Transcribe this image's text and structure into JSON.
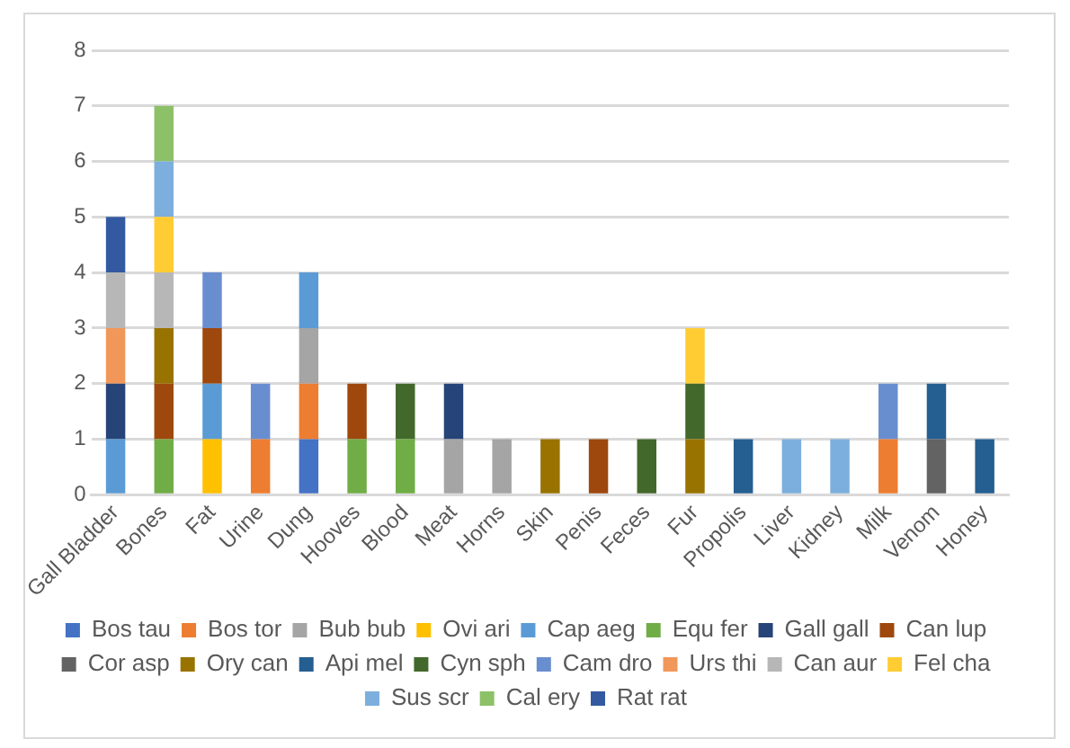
{
  "chart_data": {
    "type": "bar",
    "stacked": true,
    "legend": "bottom",
    "grid": "y",
    "ylim": [
      0,
      8
    ],
    "yticks": [
      0,
      1,
      2,
      3,
      4,
      5,
      6,
      7,
      8
    ],
    "categories": [
      "Gall Bladder",
      "Bones",
      "Fat",
      "Urine",
      "Dung",
      "Hooves",
      "Blood",
      "Meat",
      "Horns",
      "Skin",
      "Penis",
      "Feces",
      "Fur",
      "Propolis",
      "Liver",
      "Kidney",
      "Milk",
      "Venom",
      "Honey"
    ],
    "series": [
      {
        "name": "Bos tau",
        "color": "#4472c4",
        "values": [
          0,
          0,
          0,
          0,
          1,
          0,
          0,
          0,
          0,
          0,
          0,
          0,
          0,
          0,
          0,
          0,
          0,
          0,
          0
        ]
      },
      {
        "name": "Bos tor",
        "color": "#ed7d31",
        "values": [
          0,
          0,
          0,
          1,
          1,
          0,
          0,
          0,
          0,
          0,
          0,
          0,
          0,
          0,
          0,
          0,
          1,
          0,
          0
        ]
      },
      {
        "name": "Bub bub",
        "color": "#a5a5a5",
        "values": [
          0,
          0,
          0,
          0,
          1,
          0,
          0,
          1,
          1,
          0,
          0,
          0,
          0,
          0,
          0,
          0,
          0,
          0,
          0
        ]
      },
      {
        "name": "Ovi ari",
        "color": "#ffc000",
        "values": [
          0,
          0,
          1,
          0,
          0,
          0,
          0,
          0,
          0,
          0,
          0,
          0,
          0,
          0,
          0,
          0,
          0,
          0,
          0
        ]
      },
      {
        "name": "Cap aeg",
        "color": "#5b9bd5",
        "values": [
          1,
          0,
          1,
          0,
          1,
          0,
          0,
          0,
          0,
          0,
          0,
          0,
          0,
          0,
          0,
          0,
          0,
          0,
          0
        ]
      },
      {
        "name": "Equ fer",
        "color": "#70ad47",
        "values": [
          0,
          1,
          0,
          0,
          0,
          1,
          1,
          0,
          0,
          0,
          0,
          0,
          0,
          0,
          0,
          0,
          0,
          0,
          0
        ]
      },
      {
        "name": "Gall gall",
        "color": "#264478",
        "values": [
          1,
          0,
          0,
          0,
          0,
          0,
          0,
          1,
          0,
          0,
          0,
          0,
          0,
          0,
          0,
          0,
          0,
          0,
          0
        ]
      },
      {
        "name": "Can lup",
        "color": "#9e480e",
        "values": [
          0,
          1,
          1,
          0,
          0,
          1,
          0,
          0,
          0,
          0,
          1,
          0,
          0,
          0,
          0,
          0,
          0,
          0,
          0
        ]
      },
      {
        "name": "Cor asp",
        "color": "#636363",
        "values": [
          0,
          0,
          0,
          0,
          0,
          0,
          0,
          0,
          0,
          0,
          0,
          0,
          0,
          0,
          0,
          0,
          0,
          1,
          0
        ]
      },
      {
        "name": "Ory can",
        "color": "#997300",
        "values": [
          0,
          1,
          0,
          0,
          0,
          0,
          0,
          0,
          0,
          1,
          0,
          0,
          1,
          0,
          0,
          0,
          0,
          0,
          0
        ]
      },
      {
        "name": "Api mel",
        "color": "#255e91",
        "values": [
          0,
          0,
          0,
          0,
          0,
          0,
          0,
          0,
          0,
          0,
          0,
          0,
          0,
          1,
          0,
          0,
          0,
          1,
          1
        ]
      },
      {
        "name": "Cyn sph",
        "color": "#43682b",
        "values": [
          0,
          0,
          0,
          0,
          0,
          0,
          1,
          0,
          0,
          0,
          0,
          1,
          1,
          0,
          0,
          0,
          0,
          0,
          0
        ]
      },
      {
        "name": "Cam dro",
        "color": "#698ed0",
        "values": [
          0,
          0,
          1,
          1,
          0,
          0,
          0,
          0,
          0,
          0,
          0,
          0,
          0,
          0,
          0,
          0,
          1,
          0,
          0
        ]
      },
      {
        "name": "Urs thi",
        "color": "#f1975a",
        "values": [
          1,
          0,
          0,
          0,
          0,
          0,
          0,
          0,
          0,
          0,
          0,
          0,
          0,
          0,
          0,
          0,
          0,
          0,
          0
        ]
      },
      {
        "name": "Can aur",
        "color": "#b7b7b7",
        "values": [
          1,
          1,
          0,
          0,
          0,
          0,
          0,
          0,
          0,
          0,
          0,
          0,
          0,
          0,
          0,
          0,
          0,
          0,
          0
        ]
      },
      {
        "name": "Fel cha",
        "color": "#ffcd33",
        "values": [
          0,
          1,
          0,
          0,
          0,
          0,
          0,
          0,
          0,
          0,
          0,
          0,
          1,
          0,
          0,
          0,
          0,
          0,
          0
        ]
      },
      {
        "name": "Sus scr",
        "color": "#7cafdd",
        "values": [
          0,
          1,
          0,
          0,
          0,
          0,
          0,
          0,
          0,
          0,
          0,
          0,
          0,
          0,
          1,
          1,
          0,
          0,
          0
        ]
      },
      {
        "name": "Cal ery",
        "color": "#8cc168",
        "values": [
          0,
          1,
          0,
          0,
          0,
          0,
          0,
          0,
          0,
          0,
          0,
          0,
          0,
          0,
          0,
          0,
          0,
          0,
          0
        ]
      },
      {
        "name": "Rat rat",
        "color": "#335aa1",
        "values": [
          1,
          0,
          0,
          0,
          0,
          0,
          0,
          0,
          0,
          0,
          0,
          0,
          0,
          0,
          0,
          0,
          0,
          0,
          0
        ]
      }
    ]
  }
}
